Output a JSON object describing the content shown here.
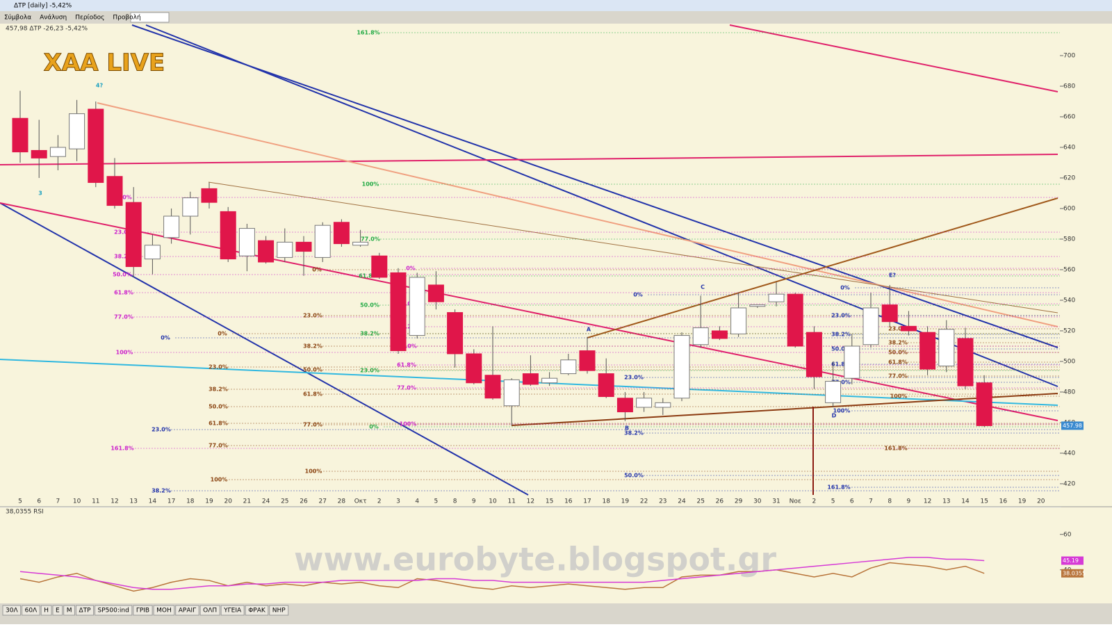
{
  "window": {
    "title": "ΔTP [daily] -5,42%",
    "menu": [
      "Σύμβολα",
      "Ανάλυση",
      "Περίοδος",
      "Προβολή"
    ]
  },
  "header": "457,98 ΔTP -26,23 -5,42%",
  "watermarks": [
    "XAA LIVE",
    "www.eurobyte.blogspot.gr"
  ],
  "chart_data": [
    {
      "type": "candlestick",
      "name": "ΔTP",
      "categories": [
        "5",
        "6",
        "7",
        "10",
        "11",
        "12",
        "13",
        "14",
        "17",
        "18",
        "19",
        "20",
        "21",
        "24",
        "25",
        "26",
        "27",
        "28",
        "Οκτ",
        "2",
        "3",
        "4",
        "5",
        "8",
        "9",
        "10",
        "11",
        "12",
        "15",
        "16",
        "17",
        "18",
        "19",
        "22",
        "23",
        "24",
        "25",
        "26",
        "29",
        "30",
        "31",
        "Νοε",
        "2",
        "5",
        "6",
        "7",
        "8",
        "9",
        "12",
        "13",
        "14",
        "15",
        "16",
        "19",
        "20"
      ],
      "open": [
        659,
        638,
        634,
        639,
        665,
        621,
        604,
        567,
        581,
        595,
        613,
        598,
        569,
        579,
        568,
        578,
        568,
        591,
        576,
        569,
        558,
        517,
        550,
        532,
        505,
        491,
        471,
        492,
        486,
        492,
        507,
        492,
        476,
        470,
        470,
        476,
        511,
        520,
        518,
        536,
        539,
        544,
        519,
        473,
        489,
        511,
        537,
        523,
        519,
        497,
        515,
        486,
        null,
        null,
        null
      ],
      "high": [
        677,
        658,
        648,
        671,
        670,
        633,
        614,
        583,
        600,
        611,
        617,
        601,
        590,
        582,
        587,
        582,
        591,
        593,
        586,
        571,
        561,
        558,
        559,
        534,
        508,
        523,
        489,
        504,
        493,
        505,
        516,
        502,
        480,
        480,
        476,
        519,
        543,
        523,
        545,
        537,
        552,
        545,
        523,
        500,
        518,
        545,
        550,
        533,
        523,
        527,
        522,
        491,
        null,
        null,
        null
      ],
      "low": [
        630,
        620,
        625,
        631,
        614,
        600,
        555,
        557,
        577,
        583,
        600,
        565,
        559,
        564,
        565,
        556,
        565,
        575,
        575,
        554,
        505,
        515,
        534,
        496,
        485,
        475,
        458,
        484,
        484,
        491,
        492,
        476,
        461,
        467,
        465,
        474,
        509,
        514,
        516,
        535,
        536,
        509,
        482,
        470,
        485,
        509,
        523,
        517,
        491,
        493,
        482,
        457,
        null,
        null,
        null
      ],
      "close": [
        637,
        633,
        640,
        662,
        617,
        602,
        562,
        576,
        595,
        607,
        604,
        567,
        587,
        565,
        578,
        572,
        589,
        577,
        578,
        555,
        507,
        555,
        539,
        505,
        486,
        476,
        488,
        485,
        489,
        501,
        494,
        477,
        467,
        476,
        473,
        517,
        522,
        515,
        535,
        537,
        544,
        510,
        490,
        487,
        510,
        535,
        526,
        520,
        495,
        521,
        484,
        457.98,
        null,
        null,
        null
      ],
      "up_color": "#ffffff",
      "down_color": "#e0164a",
      "ylim": [
        412.7,
        720
      ],
      "yticks": [
        420,
        440,
        460,
        480,
        500,
        520,
        540,
        560,
        580,
        600,
        620,
        640,
        660,
        680,
        700
      ],
      "last_label": "457.98",
      "annotations": [
        "161.8%",
        "100%",
        "77.0%",
        "61.8%",
        "50.0%",
        "38.2%",
        "23.0%",
        "0%",
        "0%",
        "23.0%",
        "38.2%",
        "50.0%",
        "61.8%",
        "77.0%",
        "100%",
        "161.8%",
        "0%",
        "23.0%",
        "38.2%",
        "50.0%",
        "61.8%",
        "77.0%",
        "100%",
        "0%",
        "23.0%",
        "38.2%",
        "50.0%",
        "61.8%",
        "77.0%",
        "100%",
        "0%",
        "23.0%",
        "38.2%",
        "0%",
        "23.0%",
        "38.2%",
        "50.0%",
        "61.8%",
        "77.0%",
        "100%",
        "0%",
        "23.0%",
        "38.2%",
        "50.0%",
        "0%",
        "23.0%",
        "38.2%",
        "50.0%",
        "61.8%",
        "77.0%",
        "100%",
        "161.8%",
        "23.0%",
        "38.2%",
        "50.0%",
        "61.8%",
        "77.0%",
        "100%",
        "161.8%",
        "3",
        "4?",
        "A",
        "B",
        "C",
        "D",
        "E?"
      ]
    },
    {
      "type": "line",
      "name": "38,0355 RSI",
      "series": [
        {
          "name": "RSI",
          "color": "#b8743a",
          "values": [
            35,
            33,
            36,
            38,
            34,
            31,
            28,
            30,
            33,
            35,
            34,
            31,
            33,
            31,
            32,
            31,
            33,
            32,
            33,
            31,
            30,
            35,
            34,
            32,
            30,
            29,
            31,
            30,
            31,
            32,
            31,
            30,
            29,
            30,
            30,
            36,
            37,
            37,
            39,
            39,
            40,
            38,
            36,
            38,
            36,
            41,
            44,
            43,
            42,
            40,
            42,
            38.0355,
            null,
            null,
            null
          ],
          "last_label": "38.0355"
        },
        {
          "name": "MA",
          "color": "#d63ad6",
          "values": [
            39,
            38,
            37,
            36,
            34,
            32,
            30,
            29,
            29,
            30,
            31,
            31,
            32,
            32,
            33,
            33,
            33,
            34,
            34,
            34,
            34,
            34,
            35,
            35,
            34,
            34,
            33,
            33,
            33,
            33,
            33,
            33,
            33,
            33,
            34,
            35,
            36,
            37,
            38,
            39,
            40,
            41,
            42,
            43,
            44,
            45,
            46,
            47,
            47,
            46,
            46,
            45.19,
            null,
            null,
            null
          ],
          "last_label": "45.19"
        }
      ],
      "ylim": [
        25,
        70.5
      ],
      "yticks": [
        40,
        60
      ]
    }
  ],
  "tabs": [
    "30Λ",
    "60Λ",
    "H",
    "E",
    "M",
    "ΔTP",
    "SP500:ind",
    "ΓΡΙΒ",
    "ΜΟΗ",
    "ΑΡΑΙΓ",
    "ΟΛΠ",
    "ΥΓΕΙΑ",
    "ΦΡΑΚ",
    "ΝΗΡ"
  ]
}
